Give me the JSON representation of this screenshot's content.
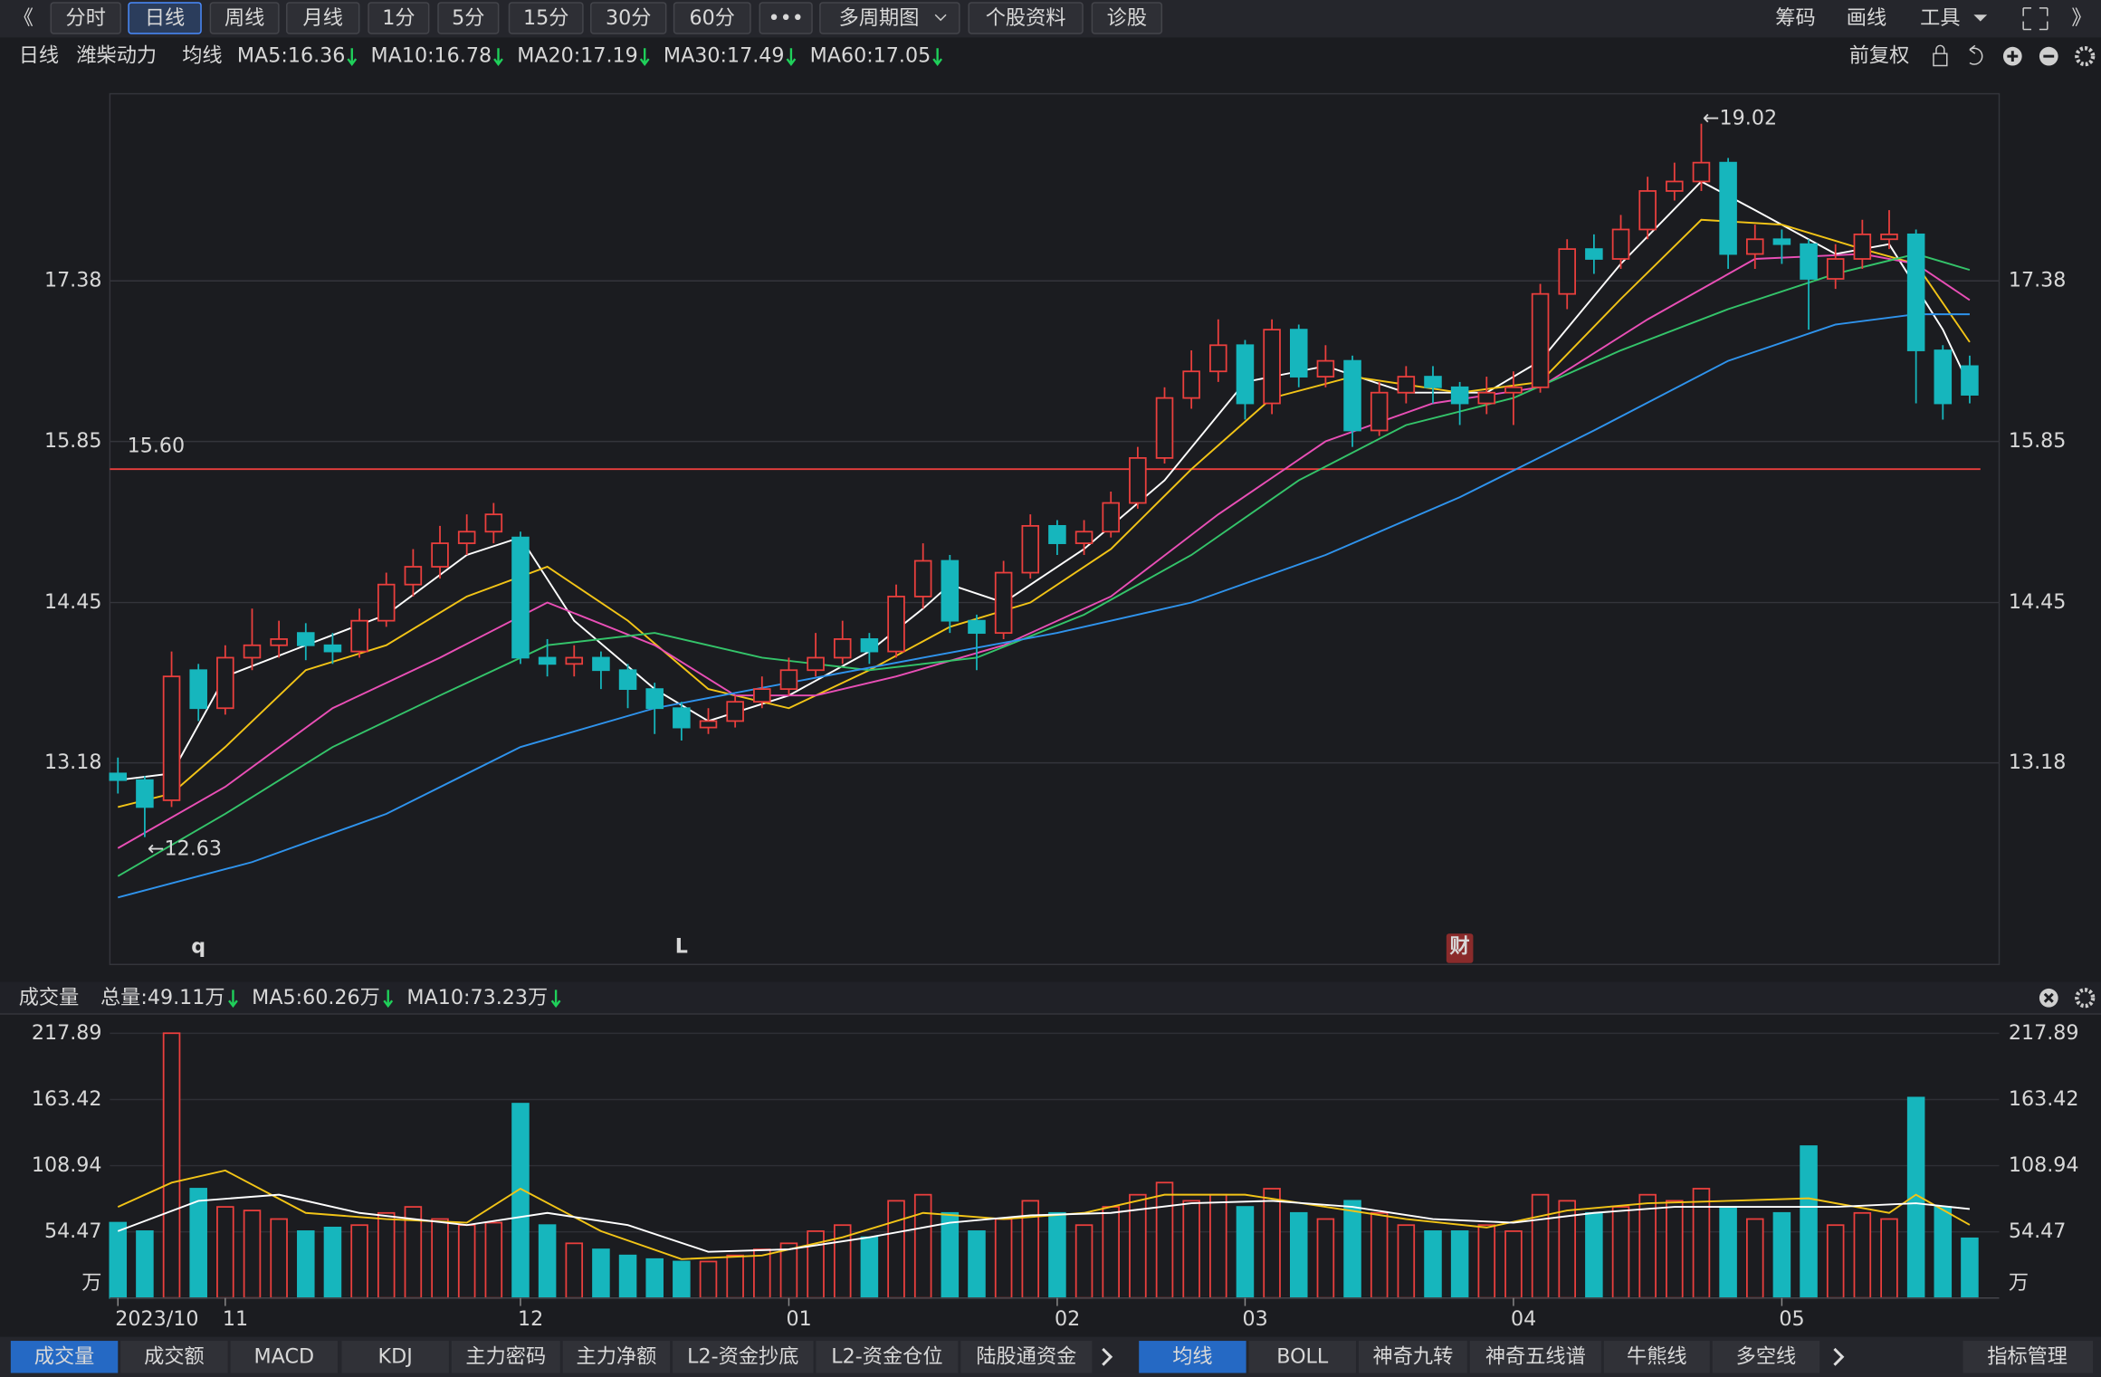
{
  "toolbar": {
    "back": "《",
    "items": [
      "分时",
      "日线",
      "周线",
      "月线",
      "1分",
      "5分",
      "15分",
      "30分",
      "60分",
      "•••",
      "多周期图",
      "个股资料",
      "诊股"
    ],
    "active": 1,
    "right": [
      "筹码",
      "画线",
      "工具"
    ],
    "forward": "》"
  },
  "legend": {
    "period": "日线",
    "stock": "潍柴动力",
    "ma_title": "均线",
    "items": [
      {
        "text": "MA5:16.36",
        "color": "#ffffff"
      },
      {
        "text": "MA10:16.78",
        "color": "#f2c417"
      },
      {
        "text": "MA20:17.19",
        "color": "#e94fb6"
      },
      {
        "text": "MA30:17.49",
        "color": "#34c46a"
      },
      {
        "text": "MA60:17.05",
        "color": "#2f93ec"
      }
    ],
    "adjust": "前复权"
  },
  "chart_data": {
    "type": "candlestick",
    "log": true,
    "grid": true,
    "up_color": "#ea3f3d",
    "down_color": "#16b6bd",
    "ylim": [
      11.74,
      19.35
    ],
    "yticks": [
      13.18,
      14.45,
      15.85,
      17.38
    ],
    "candles": [
      [
        13.1,
        13.05,
        13.22,
        12.95
      ],
      [
        13.05,
        12.85,
        13.08,
        12.63
      ],
      [
        12.9,
        13.85,
        14.05,
        12.85
      ],
      [
        13.9,
        13.6,
        13.95,
        13.5
      ],
      [
        13.6,
        14.0,
        14.1,
        13.55
      ],
      [
        14.0,
        14.1,
        14.4,
        13.9
      ],
      [
        14.1,
        14.15,
        14.3,
        14.0
      ],
      [
        14.2,
        14.1,
        14.28,
        13.98
      ],
      [
        14.1,
        14.05,
        14.2,
        13.95
      ],
      [
        14.05,
        14.3,
        14.4,
        14.0
      ],
      [
        14.3,
        14.6,
        14.7,
        14.25
      ],
      [
        14.6,
        14.75,
        14.9,
        14.5
      ],
      [
        14.75,
        14.95,
        15.1,
        14.65
      ],
      [
        14.95,
        15.05,
        15.2,
        14.85
      ],
      [
        15.05,
        15.2,
        15.3,
        14.95
      ],
      [
        15.0,
        14.0,
        15.05,
        13.95
      ],
      [
        14.0,
        13.95,
        14.15,
        13.85
      ],
      [
        13.95,
        14.0,
        14.1,
        13.85
      ],
      [
        14.0,
        13.9,
        14.05,
        13.75
      ],
      [
        13.9,
        13.75,
        13.95,
        13.6
      ],
      [
        13.75,
        13.6,
        13.8,
        13.4
      ],
      [
        13.6,
        13.45,
        13.65,
        13.35
      ],
      [
        13.45,
        13.5,
        13.6,
        13.4
      ],
      [
        13.5,
        13.65,
        13.7,
        13.45
      ],
      [
        13.65,
        13.75,
        13.85,
        13.6
      ],
      [
        13.75,
        13.9,
        14.0,
        13.7
      ],
      [
        13.9,
        14.0,
        14.2,
        13.85
      ],
      [
        14.0,
        14.15,
        14.3,
        13.95
      ],
      [
        14.15,
        14.05,
        14.2,
        13.95
      ],
      [
        14.05,
        14.5,
        14.6,
        14.0
      ],
      [
        14.5,
        14.8,
        14.95,
        14.4
      ],
      [
        14.8,
        14.3,
        14.85,
        14.2
      ],
      [
        14.3,
        14.2,
        14.35,
        13.9
      ],
      [
        14.2,
        14.7,
        14.8,
        14.15
      ],
      [
        14.7,
        15.1,
        15.2,
        14.65
      ],
      [
        15.1,
        14.95,
        15.15,
        14.85
      ],
      [
        14.95,
        15.05,
        15.15,
        14.85
      ],
      [
        15.05,
        15.3,
        15.4,
        15.0
      ],
      [
        15.3,
        15.7,
        15.8,
        15.25
      ],
      [
        15.7,
        16.25,
        16.35,
        15.65
      ],
      [
        16.25,
        16.5,
        16.7,
        16.15
      ],
      [
        16.5,
        16.75,
        17.0,
        16.4
      ],
      [
        16.75,
        16.2,
        16.8,
        16.05
      ],
      [
        16.2,
        16.9,
        17.0,
        16.1
      ],
      [
        16.9,
        16.45,
        16.95,
        16.35
      ],
      [
        16.45,
        16.6,
        16.75,
        16.35
      ],
      [
        16.6,
        15.95,
        16.65,
        15.8
      ],
      [
        15.95,
        16.3,
        16.4,
        15.9
      ],
      [
        16.3,
        16.45,
        16.55,
        16.2
      ],
      [
        16.45,
        16.35,
        16.55,
        16.2
      ],
      [
        16.35,
        16.2,
        16.4,
        16.0
      ],
      [
        16.2,
        16.3,
        16.45,
        16.1
      ],
      [
        16.3,
        16.35,
        16.5,
        16.0
      ],
      [
        16.35,
        17.25,
        17.35,
        16.3
      ],
      [
        17.25,
        17.7,
        17.8,
        17.1
      ],
      [
        17.7,
        17.6,
        17.85,
        17.45
      ],
      [
        17.6,
        17.9,
        18.05,
        17.5
      ],
      [
        17.9,
        18.3,
        18.45,
        17.8
      ],
      [
        18.3,
        18.4,
        18.6,
        18.2
      ],
      [
        18.4,
        18.6,
        19.02,
        18.3
      ],
      [
        18.6,
        17.65,
        18.65,
        17.5
      ],
      [
        17.65,
        17.8,
        17.95,
        17.5
      ],
      [
        17.8,
        17.75,
        17.9,
        17.55
      ],
      [
        17.75,
        17.4,
        17.8,
        16.9
      ],
      [
        17.4,
        17.6,
        17.75,
        17.3
      ],
      [
        17.6,
        17.85,
        18.0,
        17.5
      ],
      [
        17.8,
        17.85,
        18.1,
        17.7
      ],
      [
        17.85,
        16.7,
        17.9,
        16.2
      ],
      [
        16.7,
        16.2,
        16.75,
        16.05
      ],
      [
        16.55,
        16.28,
        16.65,
        16.2
      ]
    ],
    "ma_lines": [
      {
        "name": "MA5",
        "color": "#ffffff",
        "x": [
          0,
          2,
          4,
          7,
          10,
          13,
          15,
          17,
          20,
          22,
          25,
          28,
          30,
          31,
          33,
          36,
          39,
          42,
          45,
          48,
          51,
          53,
          56,
          59,
          61,
          64,
          66,
          68,
          69
        ],
        "values": [
          13.05,
          13.1,
          13.85,
          14.1,
          14.35,
          14.85,
          15.0,
          14.3,
          13.75,
          13.5,
          13.7,
          14.05,
          14.4,
          14.6,
          14.45,
          14.9,
          15.5,
          16.4,
          16.55,
          16.3,
          16.3,
          16.6,
          17.55,
          18.4,
          18.1,
          17.65,
          17.75,
          16.9,
          16.36
        ]
      },
      {
        "name": "MA10",
        "color": "#f2c417",
        "x": [
          0,
          2,
          4,
          7,
          10,
          13,
          16,
          19,
          22,
          25,
          28,
          31,
          34,
          37,
          40,
          43,
          46,
          50,
          53,
          56,
          59,
          62,
          65,
          67,
          69
        ],
        "values": [
          12.85,
          12.95,
          13.3,
          13.9,
          14.1,
          14.5,
          14.75,
          14.3,
          13.75,
          13.6,
          13.9,
          14.25,
          14.45,
          14.9,
          15.6,
          16.25,
          16.45,
          16.3,
          16.4,
          17.2,
          18.0,
          17.95,
          17.7,
          17.55,
          16.78
        ]
      },
      {
        "name": "MA20",
        "color": "#e94fb6",
        "x": [
          0,
          4,
          8,
          12,
          16,
          20,
          23,
          26,
          29,
          33,
          37,
          41,
          45,
          49,
          53,
          57,
          61,
          65,
          67,
          69
        ],
        "values": [
          12.55,
          13.0,
          13.6,
          14.0,
          14.45,
          14.1,
          13.7,
          13.7,
          13.85,
          14.1,
          14.5,
          15.2,
          15.85,
          16.2,
          16.35,
          17.0,
          17.6,
          17.65,
          17.55,
          17.19
        ]
      },
      {
        "name": "MA30",
        "color": "#34c46a",
        "x": [
          0,
          4,
          8,
          12,
          16,
          20,
          24,
          28,
          32,
          36,
          40,
          44,
          48,
          52,
          56,
          60,
          64,
          67,
          69
        ],
        "values": [
          12.35,
          12.8,
          13.3,
          13.7,
          14.1,
          14.2,
          14.0,
          13.9,
          14.0,
          14.35,
          14.85,
          15.5,
          16.0,
          16.25,
          16.7,
          17.1,
          17.45,
          17.65,
          17.49
        ]
      },
      {
        "name": "MA60",
        "color": "#2f93ec",
        "x": [
          0,
          5,
          10,
          15,
          20,
          25,
          30,
          35,
          40,
          45,
          50,
          55,
          60,
          64,
          67,
          69
        ],
        "values": [
          12.2,
          12.45,
          12.8,
          13.3,
          13.6,
          13.8,
          14.0,
          14.2,
          14.45,
          14.85,
          15.35,
          15.95,
          16.6,
          16.95,
          17.05,
          17.05
        ]
      }
    ],
    "level": {
      "value": 15.6,
      "label": "15.60",
      "color": "#ea3f3d"
    },
    "high_label": {
      "text": "←19.02",
      "candle": 59
    },
    "low_label": {
      "text": "←12.63",
      "candle": 1
    },
    "event_markers": [
      {
        "text": "q",
        "candle": 3
      },
      {
        "text": "L",
        "candle": 21
      },
      {
        "text": "财",
        "candle": 50
      }
    ],
    "month_labels": [
      {
        "text": "2023/10",
        "candle": 0
      },
      {
        "text": "11",
        "candle": 4
      },
      {
        "text": "12",
        "candle": 15
      },
      {
        "text": "01",
        "candle": 25
      },
      {
        "text": "02",
        "candle": 35
      },
      {
        "text": "03",
        "candle": 42
      },
      {
        "text": "04",
        "candle": 52
      },
      {
        "text": "05",
        "candle": 62
      }
    ]
  },
  "volume": {
    "title": "成交量",
    "total": "总量:49.11万",
    "ma_items": [
      {
        "text": "MA5:60.26万",
        "color": "#f2c417"
      },
      {
        "text": "MA10:73.23万",
        "color": "#ffffff"
      }
    ],
    "unit": "万",
    "ylim": [
      0,
      229.4
    ],
    "yticks": [
      54.47,
      108.94,
      163.42,
      217.89
    ],
    "values": [
      62,
      55,
      218,
      90,
      75,
      72,
      65,
      55,
      58,
      60,
      70,
      75,
      65,
      60,
      62,
      160,
      60,
      45,
      40,
      35,
      32,
      30,
      30,
      35,
      40,
      45,
      55,
      60,
      50,
      80,
      85,
      70,
      55,
      65,
      80,
      70,
      60,
      75,
      85,
      95,
      80,
      85,
      75,
      90,
      70,
      65,
      80,
      70,
      60,
      55,
      55,
      60,
      55,
      85,
      80,
      70,
      75,
      85,
      80,
      90,
      75,
      65,
      70,
      125,
      60,
      70,
      65,
      165,
      75,
      49.11
    ],
    "ma_lines": [
      {
        "name": "MA5",
        "color": "#f2c417",
        "x": [
          0,
          2,
          4,
          7,
          10,
          13,
          15,
          18,
          21,
          24,
          27,
          30,
          33,
          36,
          39,
          42,
          45,
          48,
          51,
          54,
          57,
          60,
          63,
          66,
          67,
          69
        ],
        "values": [
          75,
          95,
          105,
          70,
          65,
          62,
          90,
          55,
          32,
          35,
          50,
          70,
          65,
          70,
          85,
          85,
          75,
          65,
          58,
          72,
          78,
          80,
          82,
          70,
          85,
          60.26
        ]
      },
      {
        "name": "MA10",
        "color": "#ffffff",
        "x": [
          0,
          3,
          6,
          9,
          13,
          16,
          19,
          22,
          25,
          28,
          31,
          34,
          37,
          40,
          43,
          46,
          49,
          52,
          55,
          58,
          61,
          64,
          67,
          69
        ],
        "values": [
          55,
          80,
          85,
          70,
          60,
          70,
          60,
          38,
          40,
          50,
          62,
          68,
          70,
          78,
          80,
          75,
          65,
          62,
          70,
          75,
          75,
          75,
          78,
          73.23
        ]
      }
    ]
  },
  "tabs_left": {
    "items": [
      "成交量",
      "成交额",
      "MACD",
      "KDJ",
      "主力密码",
      "主力净额",
      "L2-资金抄底",
      "L2-资金仓位",
      "陆股通资金"
    ],
    "active": 0
  },
  "tabs_right": {
    "items": [
      "均线",
      "BOLL",
      "神奇九转",
      "神奇五线谱",
      "牛熊线",
      "多空线"
    ],
    "active": 0
  },
  "manage": "指标管理"
}
